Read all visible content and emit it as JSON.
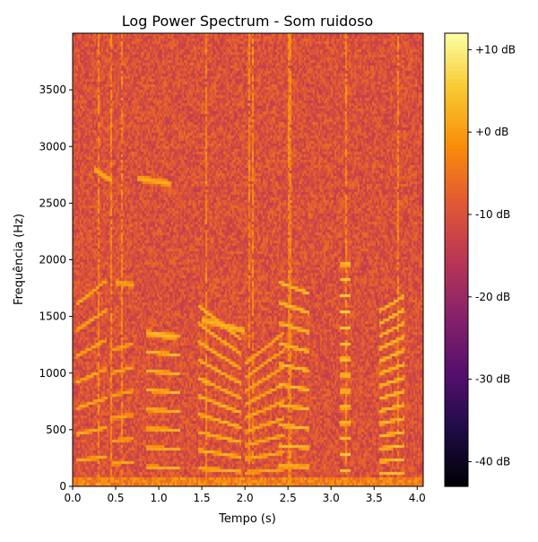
{
  "chart_data": {
    "type": "heatmap",
    "title": "Log Power Spectrum - Som ruidoso",
    "xlabel": "Tempo (s)",
    "ylabel": "Frequência (Hz)",
    "xlim": [
      0,
      4.07
    ],
    "ylim": [
      0,
      4000
    ],
    "x_ticks": [
      0.0,
      0.5,
      1.0,
      1.5,
      2.0,
      2.5,
      3.0,
      3.5,
      4.0
    ],
    "x_tick_labels": [
      "0.0",
      "0.5",
      "1.0",
      "1.5",
      "2.0",
      "2.5",
      "3.0",
      "3.5",
      "4.0"
    ],
    "y_ticks": [
      0,
      500,
      1000,
      1500,
      2000,
      2500,
      3000,
      3500
    ],
    "y_tick_labels": [
      "0",
      "500",
      "1000",
      "1500",
      "2000",
      "2500",
      "3000",
      "3500"
    ],
    "colormap": "inferno",
    "colorbar": {
      "range_db": [
        -43,
        12
      ],
      "ticks": [
        10,
        0,
        -10,
        -20,
        -30,
        -40
      ],
      "tick_labels": [
        "+10 dB",
        "+0 dB",
        "-10 dB",
        "-20 dB",
        "-30 dB",
        "-40 dB"
      ]
    },
    "background_level_db": -10,
    "harmonic_segments": [
      {
        "t": [
          0.05,
          0.4
        ],
        "f0": [
          230,
          260
        ],
        "n": 7,
        "level_db": 3
      },
      {
        "t": [
          0.45,
          0.7
        ],
        "f0": [
          200,
          210
        ],
        "n": 6,
        "level_db": 2
      },
      {
        "t": [
          0.85,
          1.25
        ],
        "f0": [
          170,
          165
        ],
        "n": 8,
        "level_db": 4
      },
      {
        "t": [
          1.45,
          1.95
        ],
        "f0": [
          160,
          130
        ],
        "n": 10,
        "level_db": 4
      },
      {
        "t": [
          2.0,
          2.45
        ],
        "f0": [
          120,
          150
        ],
        "n": 9,
        "level_db": 3
      },
      {
        "t": [
          2.4,
          2.75
        ],
        "f0": [
          180,
          170
        ],
        "n": 10,
        "level_db": 5
      },
      {
        "t": [
          3.1,
          3.22
        ],
        "f0": [
          140,
          140
        ],
        "n": 14,
        "level_db": 6
      },
      {
        "t": [
          3.55,
          3.85
        ],
        "f0": [
          110,
          120
        ],
        "n": 14,
        "level_db": 5
      }
    ],
    "formant_tracks": [
      {
        "t": [
          0.85,
          1.2
        ],
        "f": [
          1350,
          1320
        ],
        "level_db": 4
      },
      {
        "t": [
          1.5,
          2.0
        ],
        "f": [
          1470,
          1370
        ],
        "level_db": 4
      },
      {
        "t": [
          0.25,
          0.45
        ],
        "f": [
          2800,
          2700
        ],
        "level_db": 3
      },
      {
        "t": [
          0.75,
          1.15
        ],
        "f": [
          2720,
          2670
        ],
        "level_db": 3
      },
      {
        "t": [
          0.5,
          0.7
        ],
        "f": [
          1800,
          1780
        ],
        "level_db": 2
      }
    ],
    "transient_columns_s": [
      0.3,
      0.45,
      0.58,
      1.55,
      2.05,
      2.1,
      2.52,
      3.18,
      3.78
    ]
  }
}
